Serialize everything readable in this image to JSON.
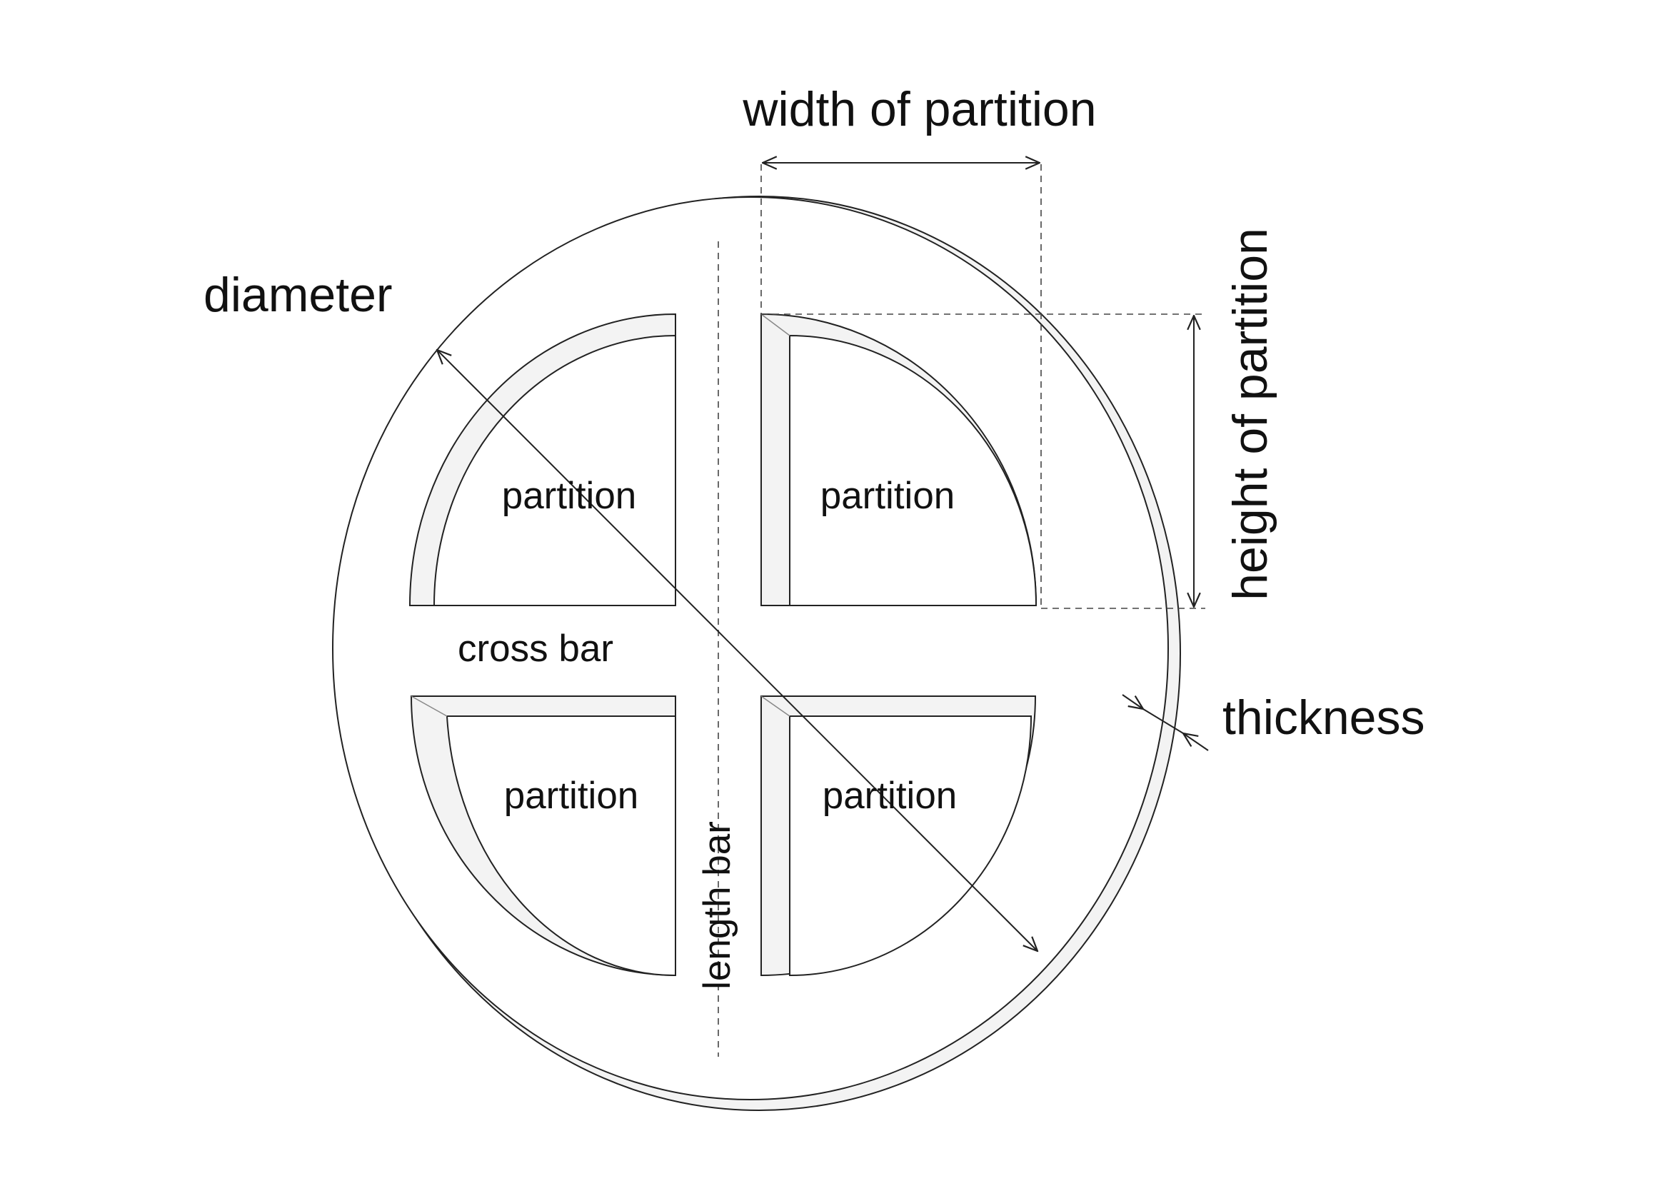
{
  "labels": {
    "width_of_partition": "width of partition",
    "height_of_partition": "height of partition",
    "diameter": "diameter",
    "thickness": "thickness",
    "cross_bar": "cross bar",
    "length_bar": "length bar",
    "partition_top_left": "partition",
    "partition_top_right": "partition",
    "partition_bottom_left": "partition",
    "partition_bottom_right": "partition"
  },
  "colors": {
    "stroke": "#222222",
    "face_shade": "#f3f3f3",
    "background": "#ffffff"
  }
}
